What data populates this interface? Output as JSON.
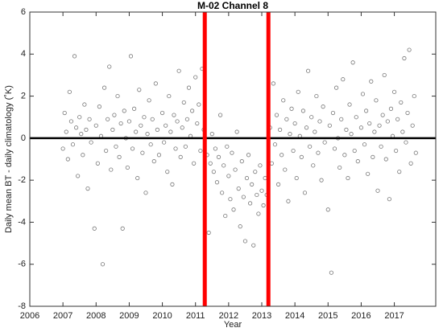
{
  "chart_data": {
    "type": "scatter",
    "title": "M-02 Channel 8",
    "xlabel": "Year",
    "ylabel": "Daily mean BT - daily climatology (˚K)",
    "xlim": [
      2006,
      2018.25
    ],
    "xticks": [
      2006,
      2007,
      2008,
      2009,
      2010,
      2011,
      2012,
      2013,
      2014,
      2015,
      2016,
      2017
    ],
    "ylim": [
      -8,
      6
    ],
    "yticks": [
      -8,
      -6,
      -4,
      -2,
      0,
      2,
      4,
      6
    ],
    "marker_color": "#555555",
    "hline": 0,
    "hline_color": "#000000",
    "vlines": [
      2011.28,
      2013.2
    ],
    "vline_color": "#ff0000",
    "x": [
      2007.0,
      2007.05,
      2007.1,
      2007.15,
      2007.2,
      2007.25,
      2007.3,
      2007.35,
      2007.4,
      2007.45,
      2007.5,
      2007.55,
      2007.6,
      2007.65,
      2007.7,
      2007.75,
      2007.8,
      2007.85,
      2007.95,
      2008.0,
      2008.05,
      2008.1,
      2008.15,
      2008.2,
      2008.25,
      2008.3,
      2008.35,
      2008.4,
      2008.45,
      2008.5,
      2008.55,
      2008.6,
      2008.65,
      2008.7,
      2008.75,
      2008.8,
      2008.85,
      2008.9,
      2008.95,
      2009.0,
      2009.05,
      2009.1,
      2009.15,
      2009.2,
      2009.25,
      2009.3,
      2009.35,
      2009.4,
      2009.45,
      2009.5,
      2009.55,
      2009.6,
      2009.65,
      2009.7,
      2009.75,
      2009.8,
      2009.85,
      2009.9,
      2010.0,
      2010.05,
      2010.1,
      2010.15,
      2010.2,
      2010.25,
      2010.3,
      2010.35,
      2010.4,
      2010.45,
      2010.5,
      2010.55,
      2010.6,
      2010.65,
      2010.7,
      2010.75,
      2010.8,
      2010.85,
      2010.9,
      2010.95,
      2011.0,
      2011.05,
      2011.1,
      2011.15,
      2011.2,
      2011.25,
      2011.35,
      2011.4,
      2011.45,
      2011.5,
      2011.55,
      2011.6,
      2011.65,
      2011.7,
      2011.75,
      2011.8,
      2011.85,
      2011.9,
      2011.95,
      2012.0,
      2012.05,
      2012.1,
      2012.15,
      2012.2,
      2012.25,
      2012.3,
      2012.35,
      2012.4,
      2012.45,
      2012.5,
      2012.55,
      2012.6,
      2012.65,
      2012.7,
      2012.75,
      2012.8,
      2012.85,
      2012.9,
      2012.95,
      2013.0,
      2013.05,
      2013.1,
      2013.15,
      2013.25,
      2013.3,
      2013.35,
      2013.4,
      2013.45,
      2013.5,
      2013.55,
      2013.6,
      2013.65,
      2013.7,
      2013.75,
      2013.8,
      2013.85,
      2013.9,
      2013.95,
      2014.0,
      2014.05,
      2014.1,
      2014.15,
      2014.2,
      2014.25,
      2014.3,
      2014.35,
      2014.4,
      2014.45,
      2014.5,
      2014.55,
      2014.6,
      2014.65,
      2014.7,
      2014.75,
      2014.8,
      2014.85,
      2014.9,
      2015.0,
      2015.05,
      2015.1,
      2015.15,
      2015.2,
      2015.25,
      2015.3,
      2015.35,
      2015.4,
      2015.45,
      2015.5,
      2015.55,
      2015.6,
      2015.65,
      2015.7,
      2015.75,
      2015.8,
      2015.85,
      2015.9,
      2016.0,
      2016.05,
      2016.1,
      2016.15,
      2016.2,
      2016.25,
      2016.3,
      2016.35,
      2016.4,
      2016.45,
      2016.5,
      2016.55,
      2016.6,
      2016.65,
      2016.7,
      2016.75,
      2016.8,
      2016.85,
      2016.9,
      2016.95,
      2017.0,
      2017.05,
      2017.1,
      2017.15,
      2017.2,
      2017.25,
      2017.3,
      2017.35,
      2017.4,
      2017.45,
      2017.5,
      2017.55,
      2017.6,
      2017.65
    ],
    "y": [
      -0.5,
      1.2,
      0.3,
      -1.0,
      2.2,
      0.8,
      -0.3,
      3.9,
      0.5,
      -1.8,
      1.0,
      0.2,
      -0.8,
      1.6,
      0.4,
      -2.4,
      0.9,
      -0.2,
      -4.3,
      0.6,
      -1.2,
      1.5,
      0.1,
      -6.0,
      2.4,
      -0.6,
      0.9,
      3.4,
      -1.5,
      0.4,
      1.1,
      -0.4,
      2.0,
      -0.9,
      0.7,
      -4.3,
      1.3,
      0.0,
      -1.4,
      0.8,
      3.9,
      -0.5,
      1.4,
      0.3,
      -1.9,
      2.3,
      0.6,
      -0.7,
      1.0,
      -2.6,
      0.2,
      1.8,
      -0.3,
      0.9,
      -1.1,
      2.6,
      0.4,
      -0.8,
      1.2,
      -0.2,
      0.6,
      -1.6,
      2.0,
      0.3,
      -2.2,
      1.1,
      -0.5,
      0.8,
      3.2,
      -0.9,
      0.5,
      1.7,
      -0.4,
      0.9,
      2.4,
      0.1,
      1.3,
      -1.2,
      2.9,
      0.7,
      1.6,
      -0.6,
      3.3,
      0.4,
      -0.8,
      -4.5,
      -1.2,
      0.2,
      -1.6,
      -0.5,
      -2.1,
      -0.9,
      1.1,
      -2.6,
      -1.3,
      -3.7,
      -0.4,
      -1.8,
      -2.9,
      -0.7,
      -3.4,
      -1.5,
      0.3,
      -2.4,
      -4.2,
      -1.1,
      -2.8,
      -4.9,
      -1.9,
      -0.8,
      -3.1,
      -2.2,
      -5.1,
      -1.6,
      -2.7,
      -3.6,
      -1.3,
      -2.5,
      -3.2,
      -1.9,
      -2.7,
      0.5,
      -1.2,
      2.6,
      -0.3,
      1.1,
      -2.2,
      0.4,
      -0.8,
      1.8,
      -1.5,
      0.9,
      -3.0,
      0.2,
      1.4,
      -0.6,
      0.7,
      -1.9,
      2.2,
      0.1,
      -0.9,
      1.3,
      -2.6,
      0.5,
      3.2,
      -0.4,
      1.0,
      -1.3,
      0.3,
      2.0,
      -0.7,
      0.8,
      -2.0,
      1.5,
      -0.2,
      -3.4,
      0.6,
      -6.4,
      1.2,
      -0.5,
      2.4,
      0.0,
      -1.4,
      0.9,
      2.8,
      -0.8,
      0.4,
      -1.9,
      1.6,
      0.2,
      3.6,
      -0.6,
      1.0,
      -1.1,
      0.5,
      2.1,
      -0.3,
      1.3,
      -1.7,
      0.7,
      2.7,
      -0.9,
      0.3,
      1.8,
      -2.5,
      0.6,
      -0.4,
      1.1,
      3.0,
      -1.0,
      0.8,
      -2.9,
      1.4,
      0.1,
      2.2,
      -0.6,
      0.9,
      -1.6,
      1.7,
      0.3,
      3.8,
      -0.2,
      1.2,
      4.2,
      -1.2,
      0.6,
      2.0,
      -0.7
    ]
  }
}
